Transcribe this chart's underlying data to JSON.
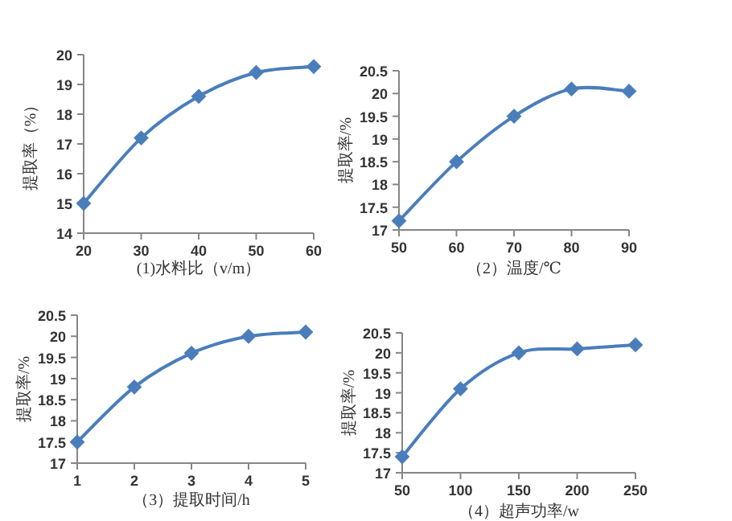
{
  "chart_data": [
    {
      "type": "line",
      "xlabel": "(1)水料比（v/m）",
      "ylabel": "提取率（%）",
      "x": [
        20,
        30,
        40,
        50,
        60
      ],
      "series": [
        {
          "color": "#4a7ebb",
          "values": [
            15,
            17.2,
            18.6,
            19.4,
            19.6
          ]
        }
      ],
      "xlim": [
        20,
        60
      ],
      "xticks": [
        20,
        30,
        40,
        50,
        60
      ],
      "ylim": [
        14,
        20
      ],
      "yticks": [
        14,
        15,
        16,
        17,
        18,
        19,
        20
      ],
      "marker": "diamond",
      "grid": false
    },
    {
      "type": "line",
      "xlabel": "（2）温度/℃",
      "ylabel": "提取率/%",
      "x": [
        50,
        60,
        70,
        80,
        90
      ],
      "series": [
        {
          "color": "#4a7ebb",
          "values": [
            17.2,
            18.5,
            19.5,
            20.1,
            20.05
          ]
        }
      ],
      "xlim": [
        50,
        90
      ],
      "xticks": [
        50,
        60,
        70,
        80,
        90
      ],
      "ylim": [
        17,
        20.5
      ],
      "yticks": [
        17,
        17.5,
        18,
        18.5,
        19,
        19.5,
        20,
        20.5
      ],
      "marker": "diamond",
      "grid": false
    },
    {
      "type": "line",
      "xlabel": "（3）提取时间/h",
      "ylabel": "提取率/%",
      "x": [
        1,
        2,
        3,
        4,
        5
      ],
      "series": [
        {
          "color": "#4a7ebb",
          "values": [
            17.5,
            18.8,
            19.6,
            20,
            20.1
          ]
        }
      ],
      "xlim": [
        1,
        5
      ],
      "xticks": [
        1,
        2,
        3,
        4,
        5
      ],
      "ylim": [
        17,
        20.5
      ],
      "yticks": [
        17,
        17.5,
        18,
        18.5,
        19,
        19.5,
        20,
        20.5
      ],
      "marker": "diamond",
      "grid": false
    },
    {
      "type": "line",
      "xlabel": "（4）超声功率/w",
      "ylabel": "提取率/%",
      "x": [
        50,
        100,
        150,
        200,
        250
      ],
      "series": [
        {
          "color": "#4a7ebb",
          "values": [
            17.4,
            19.1,
            20,
            20.1,
            20.2
          ]
        }
      ],
      "xlim": [
        50,
        250
      ],
      "xticks": [
        50,
        100,
        150,
        200,
        250
      ],
      "ylim": [
        17,
        20.5
      ],
      "yticks": [
        17,
        17.5,
        18,
        18.5,
        19,
        19.5,
        20,
        20.5
      ],
      "marker": "diamond",
      "grid": false
    }
  ]
}
